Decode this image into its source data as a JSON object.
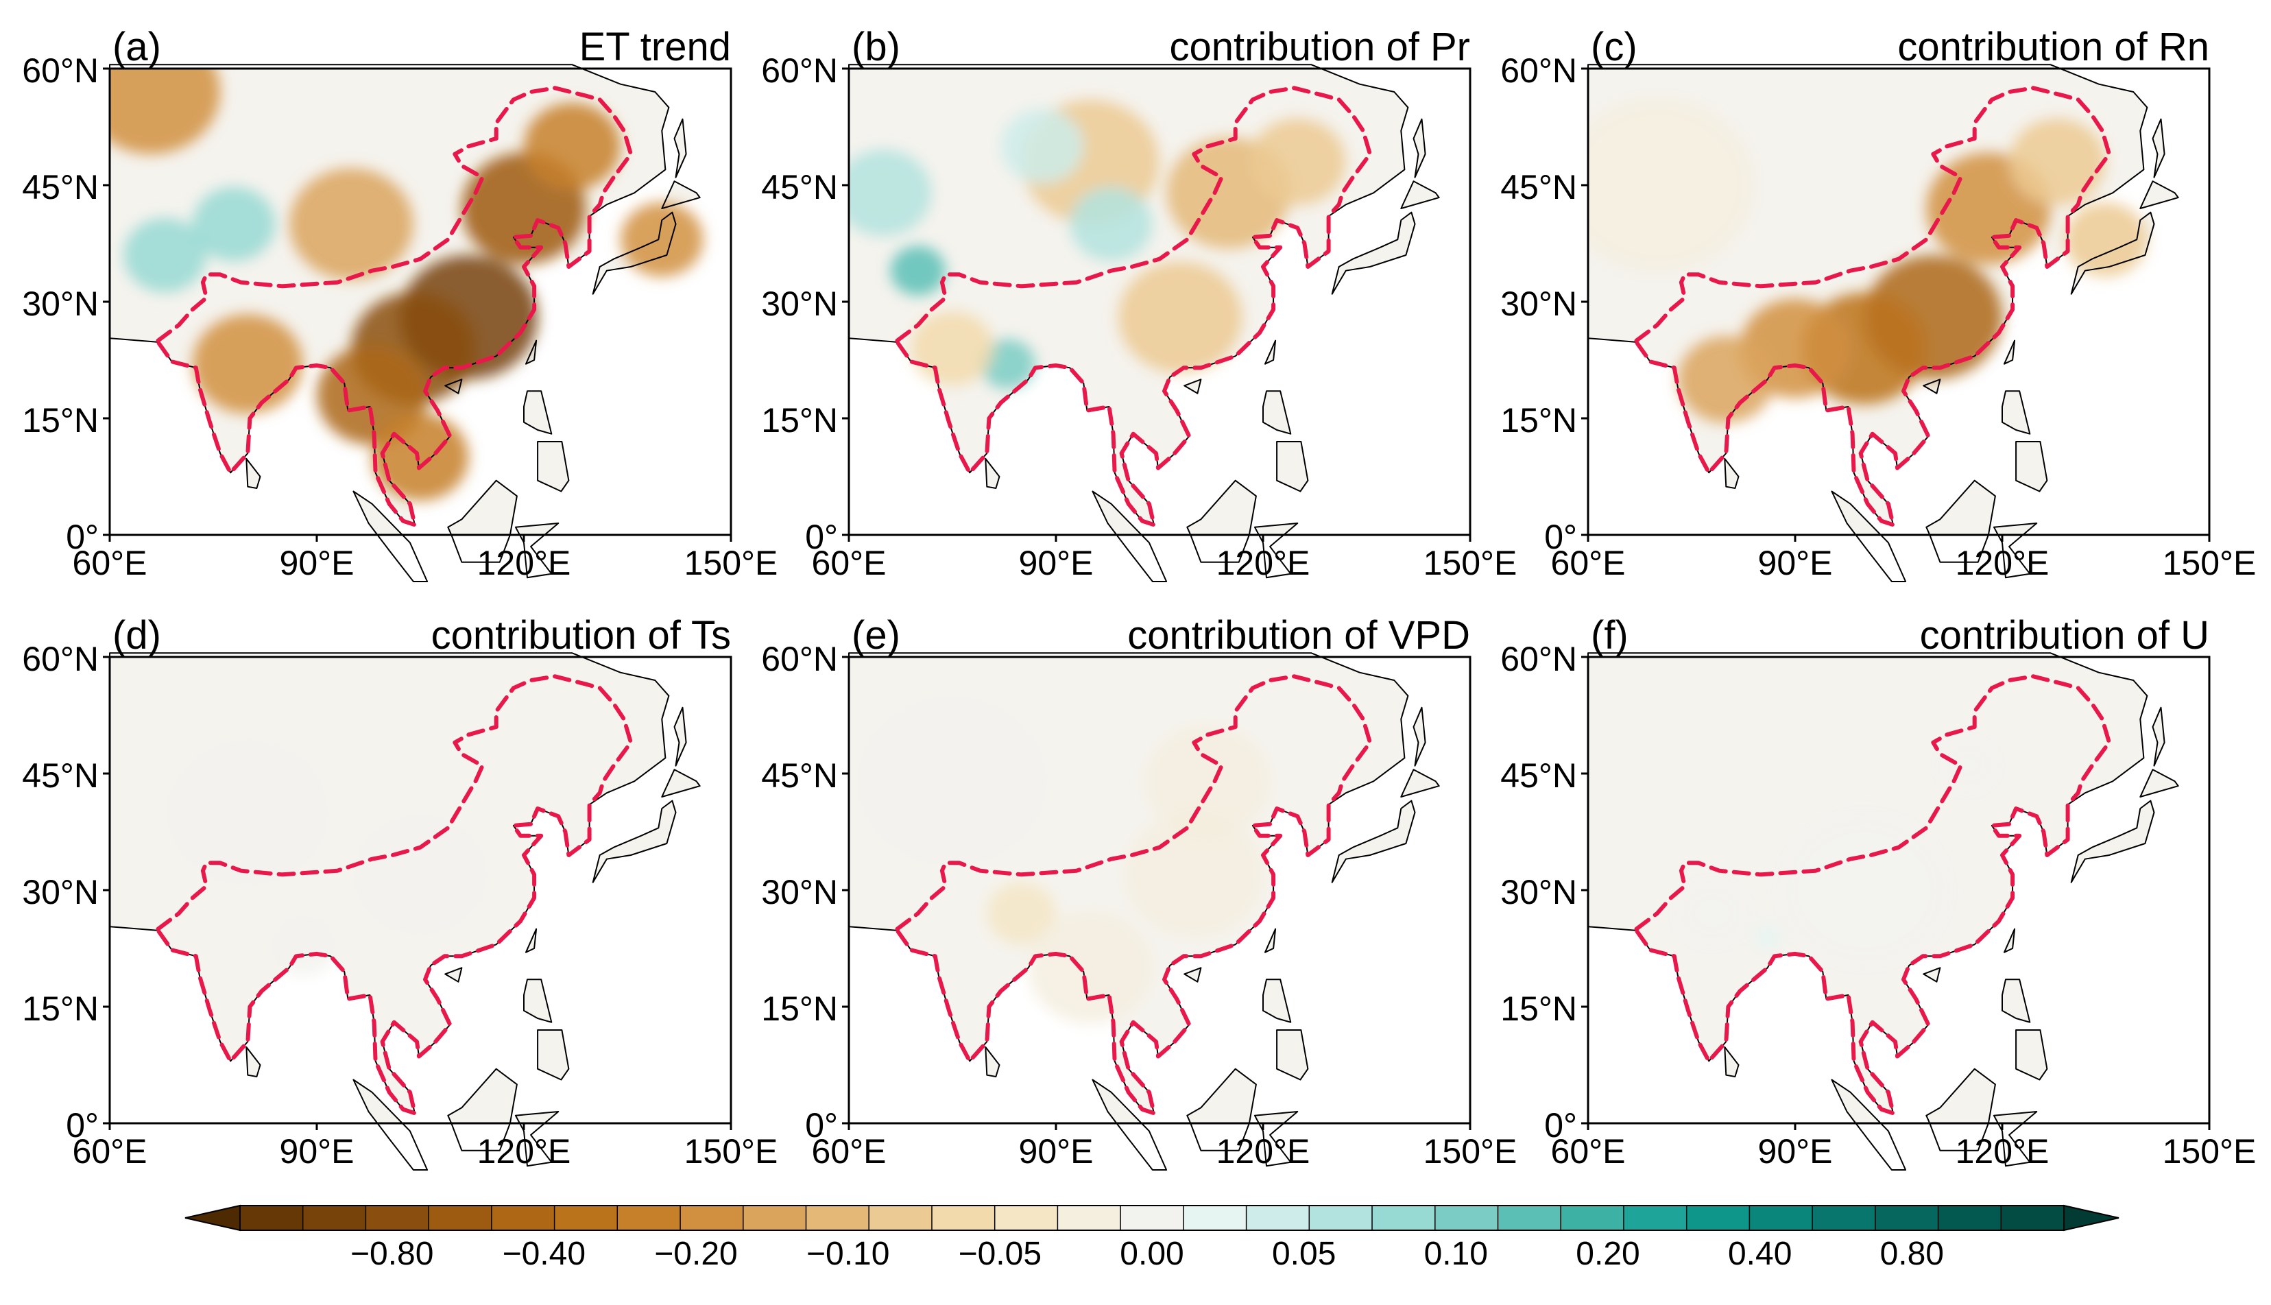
{
  "figure": {
    "panels": [
      {
        "letter": "(a)",
        "title": "ET trend",
        "pattern": "et",
        "intensity": 1.0
      },
      {
        "letter": "(b)",
        "title": "contribution of Pr",
        "pattern": "pr",
        "intensity": 0.75
      },
      {
        "letter": "(c)",
        "title": "contribution of Rn",
        "pattern": "rn",
        "intensity": 0.85
      },
      {
        "letter": "(d)",
        "title": "contribution of Ts",
        "pattern": "ts",
        "intensity": 0.15
      },
      {
        "letter": "(e)",
        "title": "contribution of VPD",
        "pattern": "vpd",
        "intensity": 0.3
      },
      {
        "letter": "(f)",
        "title": "contribution of U",
        "pattern": "u",
        "intensity": 0.12
      }
    ],
    "lat_ticks": [
      "0°",
      "15°N",
      "30°N",
      "45°N",
      "60°N"
    ],
    "lon_ticks": [
      "60°E",
      "90°E",
      "120°E",
      "150°E"
    ],
    "colorbar": {
      "tick_labels": [
        "−0.80",
        "−0.40",
        "−0.20",
        "−0.10",
        "−0.05",
        "0.00",
        "0.05",
        "0.10",
        "0.20",
        "0.40",
        "0.80"
      ],
      "colors": [
        "#653806",
        "#77430a",
        "#8a4f0e",
        "#9d5b12",
        "#ad6715",
        "#bb731b",
        "#c7802a",
        "#d19040",
        "#dba45d",
        "#e4b978",
        "#ecca93",
        "#f2daad",
        "#f5e6c6",
        "#f5efdf",
        "#f2f2ee",
        "#e6f4f2",
        "#cdecea",
        "#b3e3de",
        "#97d9d3",
        "#7accc4",
        "#5bbfb6",
        "#3eb1a5",
        "#1fa499",
        "#0e968a",
        "#0b867b",
        "#08766c",
        "#05675e",
        "#035950",
        "#024c43"
      ],
      "extend_left_color": "#4e2a03",
      "extend_right_color": "#013b33"
    },
    "colors": {
      "boundary": "#e8194a",
      "coast": "#000000"
    }
  }
}
